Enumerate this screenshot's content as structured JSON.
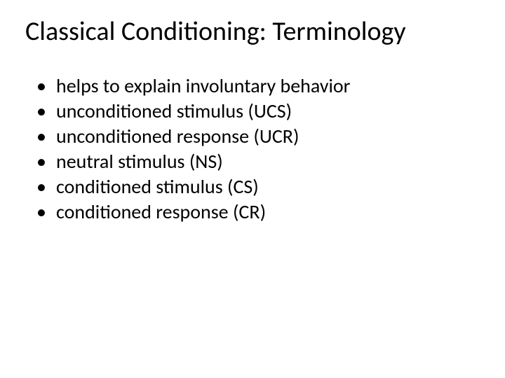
{
  "title": "Classical Conditioning: Terminology",
  "title_fontsize": 38,
  "title_color": "#000000",
  "body_fontsize": 28,
  "body_color": "#000000",
  "background_color": "#ffffff",
  "bullet_glyph": "•",
  "bullets": [
    "helps to explain involuntary behavior",
    "unconditioned stimulus (UCS)",
    "unconditioned response (UCR)",
    "neutral stimulus (NS)",
    "conditioned stimulus (CS)",
    "conditioned response (CR)"
  ]
}
